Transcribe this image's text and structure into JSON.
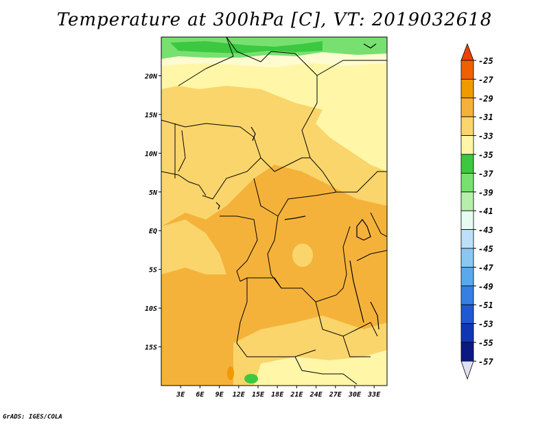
{
  "title": "Temperature at 300hPa [C], VT: 2019032618",
  "footer": "GrADS: IGES/COLA",
  "chart_data": {
    "type": "heatmap",
    "variable": "Temperature at 300hPa",
    "units": "C",
    "valid_time": "2019032618",
    "x_axis": {
      "ticks": [
        "3E",
        "6E",
        "9E",
        "12E",
        "15E",
        "18E",
        "21E",
        "24E",
        "27E",
        "30E",
        "33E"
      ],
      "tick_values": [
        3,
        6,
        9,
        12,
        15,
        18,
        21,
        24,
        27,
        30,
        33
      ],
      "range": [
        0,
        35
      ]
    },
    "y_axis": {
      "ticks": [
        "20N",
        "15N",
        "10N",
        "5N",
        "EQ",
        "5S",
        "10S",
        "15S"
      ],
      "tick_values": [
        20,
        15,
        10,
        5,
        0,
        -5,
        -10,
        -15
      ],
      "range": [
        -20,
        25
      ]
    },
    "colorbar": {
      "orientation": "vertical",
      "labels": [
        "-25",
        "-27",
        "-29",
        "-31",
        "-33",
        "-35",
        "-37",
        "-39",
        "-41",
        "-43",
        "-45",
        "-47",
        "-49",
        "-51",
        "-53",
        "-55",
        "-57"
      ],
      "colors": [
        "#f04000",
        "#f06000",
        "#f09a00",
        "#f4b23a",
        "#fad56b",
        "#fff6a8",
        "#3cc840",
        "#78e070",
        "#b4f0aa",
        "#e6fcf0",
        "#bde0fa",
        "#8ac8f2",
        "#5aa8ec",
        "#3580e2",
        "#1e58d2",
        "#1036b4",
        "#0a1a82",
        "#e0e0f4"
      ]
    },
    "regions": [
      {
        "name": "band-37",
        "value": "-37"
      },
      {
        "name": "band-35",
        "value": "-35"
      },
      {
        "name": "band-33",
        "value": "-33"
      },
      {
        "name": "band-31",
        "value": "-31"
      },
      {
        "name": "band-29",
        "value": "-29"
      }
    ]
  }
}
